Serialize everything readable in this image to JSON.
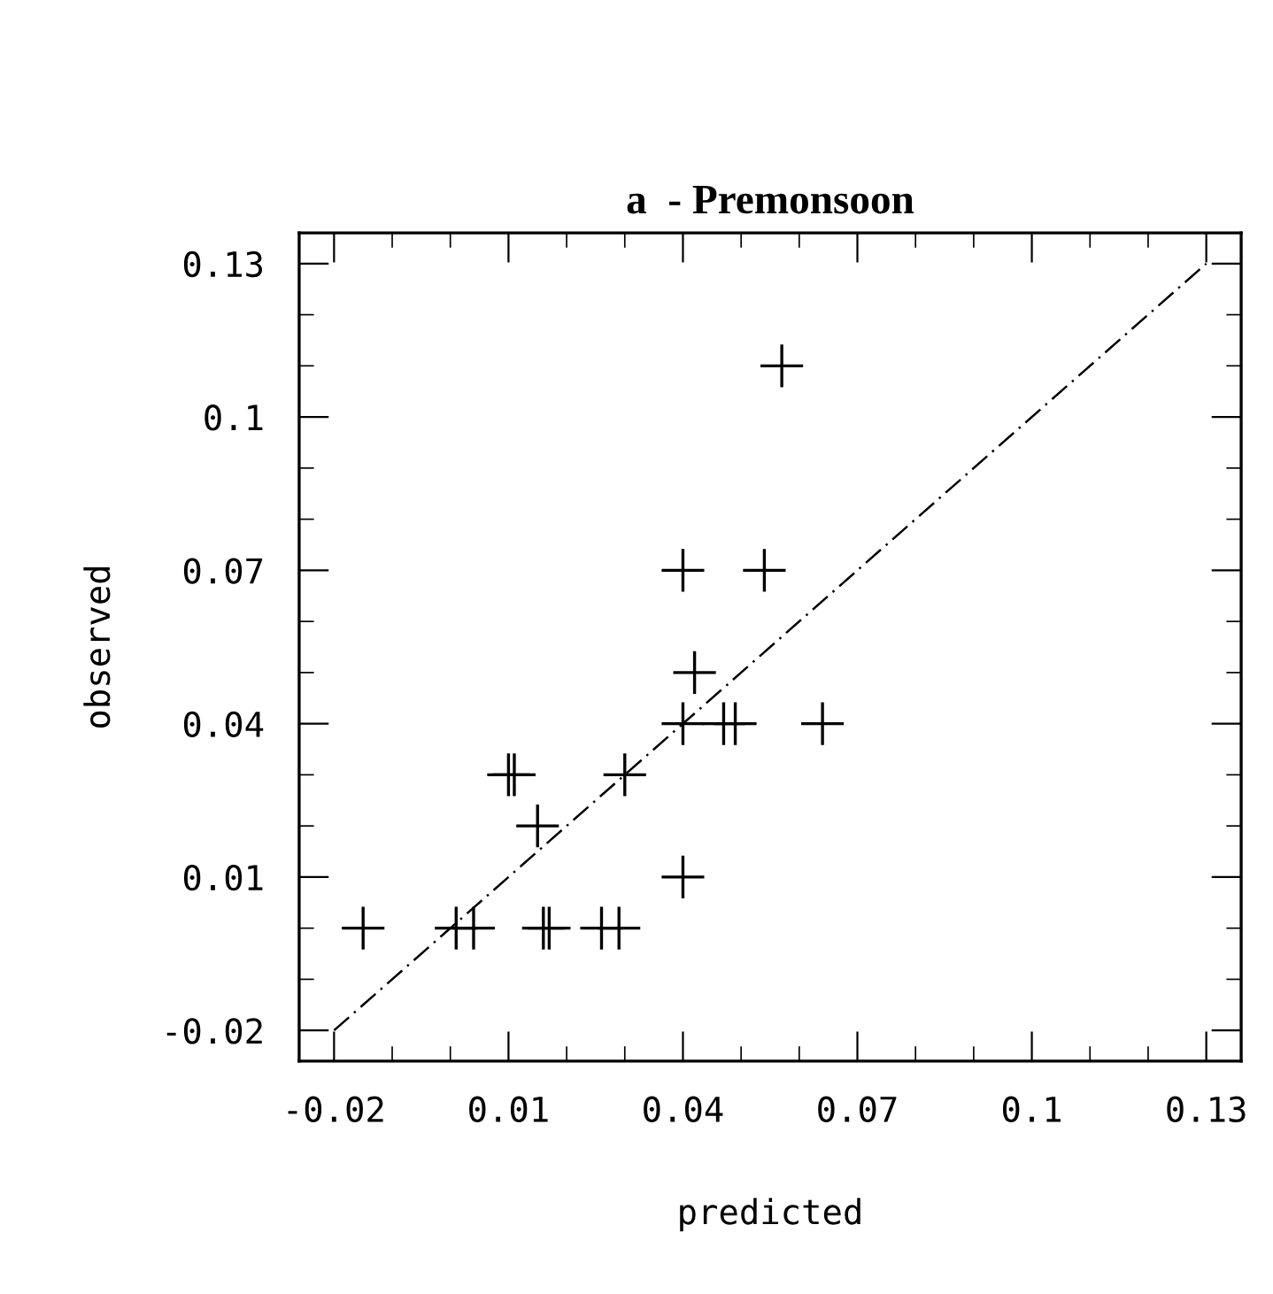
{
  "chart_data": {
    "type": "scatter",
    "title": "a  - Premonsoon",
    "xlabel": "predicted",
    "ylabel": "observed",
    "xlim": [
      -0.026,
      0.136
    ],
    "ylim": [
      -0.026,
      0.136
    ],
    "xticks": [
      -0.02,
      0.01,
      0.04,
      0.07,
      0.1,
      0.13
    ],
    "yticks": [
      -0.02,
      0.01,
      0.04,
      0.07,
      0.1,
      0.13
    ],
    "grid": false,
    "legend": false,
    "series": [
      {
        "color": "#000000",
        "marker": "cross",
        "x": [
          0.057,
          0.04,
          0.054,
          0.042,
          0.04,
          0.047,
          0.049,
          0.064,
          0.01,
          0.011,
          0.03,
          0.015,
          0.04,
          -0.015,
          0.001,
          0.004,
          0.016,
          0.017,
          0.026,
          0.029
        ],
        "values": [
          0.11,
          0.07,
          0.07,
          0.05,
          0.04,
          0.04,
          0.04,
          0.04,
          0.03,
          0.03,
          0.03,
          0.02,
          0.01,
          0,
          0,
          0,
          0,
          0,
          0,
          0
        ]
      },
      {
        "type": "line",
        "color": "#000000",
        "line_style": "dashed",
        "x": [
          -0.02,
          0.13
        ],
        "values": [
          -0.02,
          0.13
        ]
      }
    ]
  }
}
